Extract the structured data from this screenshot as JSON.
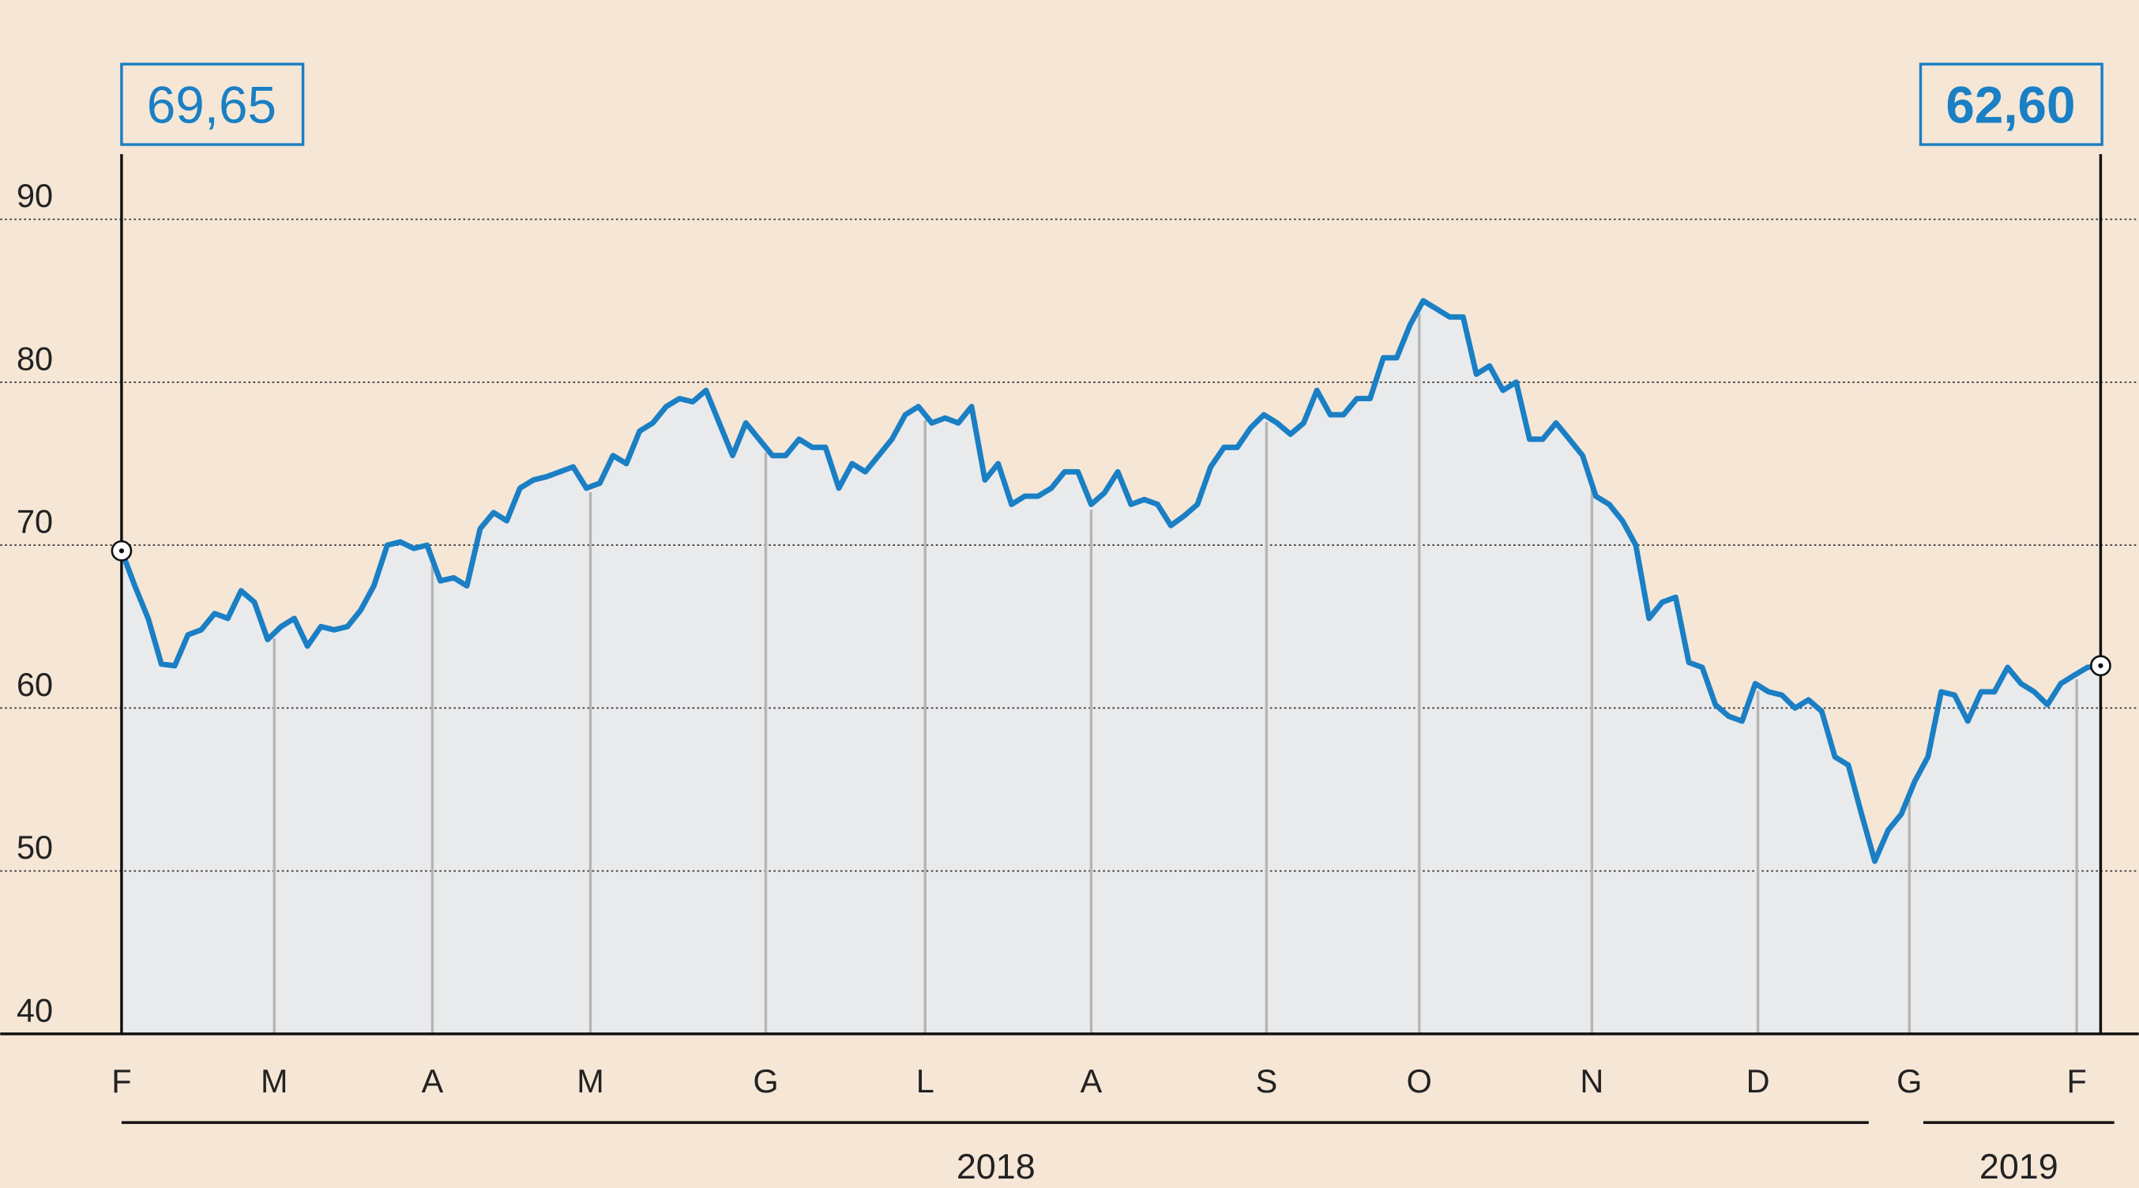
{
  "chart_data": {
    "type": "line",
    "annotations": [
      "69,65",
      "62,60"
    ],
    "year_labels": [
      "2018",
      "2019"
    ],
    "series": [
      {
        "color": "#1a7fc4",
        "values": [
          69.65,
          67.5,
          65.5,
          62.7,
          62.6,
          64.5,
          64.8,
          65.8,
          65.5,
          67.2,
          66.5,
          64.2,
          65,
          65.5,
          63.8,
          65,
          64.8,
          65,
          66,
          67.5,
          70,
          70.2,
          69.8,
          70,
          67.8,
          68,
          67.5,
          71,
          72,
          71.5,
          73.5,
          74,
          74.2,
          74.5,
          74.8,
          73.5,
          73.8,
          75.5,
          75,
          77,
          77.5,
          78.5,
          79,
          78.8,
          79.5,
          77.5,
          75.5,
          77.5,
          76.5,
          75.5,
          75.5,
          76.5,
          76,
          76,
          73.5,
          75,
          74.5,
          75.5,
          76.5,
          78,
          78.5,
          77.5,
          77.8,
          77.5,
          78.5,
          74,
          75,
          72.5,
          73,
          73,
          73.5,
          74.5,
          74.5,
          72.5,
          73.2,
          74.5,
          72.5,
          72.8,
          72.5,
          71.2,
          71.8,
          72.5,
          74.8,
          76,
          76,
          77.2,
          78,
          77.5,
          76.8,
          77.5,
          79.5,
          78,
          78,
          79,
          79,
          81.5,
          81.5,
          83.5,
          85,
          84.5,
          84,
          84,
          80.5,
          81,
          79.5,
          80,
          76.5,
          76.5,
          77.5,
          76.5,
          75.5,
          73,
          72.5,
          71.5,
          70,
          65.5,
          66.5,
          66.8,
          62.8,
          62.5,
          60.2,
          59.5,
          59.2,
          61.5,
          61,
          60.8,
          60,
          60.5,
          59.8,
          57,
          56.5,
          53.5,
          50.6,
          52.5,
          53.5,
          55.5,
          57,
          61,
          60.8,
          59.2,
          61,
          61,
          62.5,
          61.5,
          61,
          60.2,
          61.5,
          62,
          62.5,
          62.6
        ]
      }
    ],
    "xlim": [
      0,
      149
    ],
    "xticks": [
      {
        "value": 0,
        "label": "F"
      },
      {
        "value": 11.5,
        "label": "M"
      },
      {
        "value": 23.4,
        "label": "A"
      },
      {
        "value": 35.3,
        "label": "M"
      },
      {
        "value": 48.5,
        "label": "G"
      },
      {
        "value": 60.5,
        "label": "L"
      },
      {
        "value": 73,
        "label": "A"
      },
      {
        "value": 86.2,
        "label": "S"
      },
      {
        "value": 97.7,
        "label": "O"
      },
      {
        "value": 110.7,
        "label": "N"
      },
      {
        "value": 123.2,
        "label": "D"
      },
      {
        "value": 134.6,
        "label": "G"
      },
      {
        "value": 147.2,
        "label": "F"
      }
    ],
    "ylim": [
      40,
      94
    ],
    "yticks": [
      40,
      50,
      60,
      70,
      80,
      90
    ],
    "grid": true
  }
}
